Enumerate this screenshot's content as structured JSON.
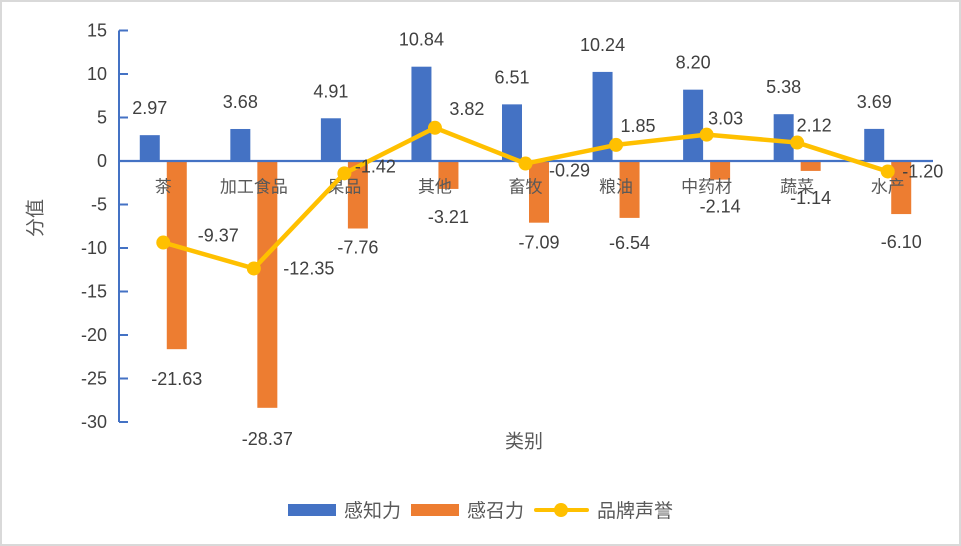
{
  "frame": {
    "background": "#FFFFFF",
    "border_color": "#D9D9D9"
  },
  "chart_data": {
    "type": "combo",
    "title": "",
    "xlabel": "类别",
    "ylabel": "分值",
    "categories": [
      "茶",
      "加工食品",
      "果品",
      "其他",
      "畜牧",
      "粮油",
      "中药材",
      "蔬菜",
      "水产"
    ],
    "series": [
      {
        "name": "感知力",
        "type": "bar",
        "color": "#4472C4",
        "values": [
          2.97,
          3.68,
          4.91,
          10.84,
          6.51,
          10.24,
          8.2,
          5.38,
          3.69
        ]
      },
      {
        "name": "感召力",
        "type": "bar",
        "color": "#ED7D31",
        "values": [
          -21.63,
          -28.37,
          -7.76,
          -3.21,
          -7.09,
          -6.54,
          -2.14,
          -1.14,
          -6.1
        ]
      },
      {
        "name": "品牌声誉",
        "type": "line",
        "color": "#FFC000",
        "values": [
          -9.37,
          -12.35,
          -1.42,
          3.82,
          -0.29,
          1.85,
          3.03,
          2.12,
          -1.2
        ]
      }
    ],
    "ylim": [
      -30,
      15
    ],
    "yticks": [
      15,
      10,
      5,
      0,
      -5,
      -10,
      -15,
      -20,
      -25,
      -30
    ],
    "grid": false,
    "legend_position": "bottom",
    "data_labels": true,
    "label_decimals": 2,
    "axis_color": "#4472C4",
    "tick_label_color": "#404040",
    "data_label_color": "#404040",
    "category_label_color": "#595959",
    "axis_title_color": "#595959"
  }
}
